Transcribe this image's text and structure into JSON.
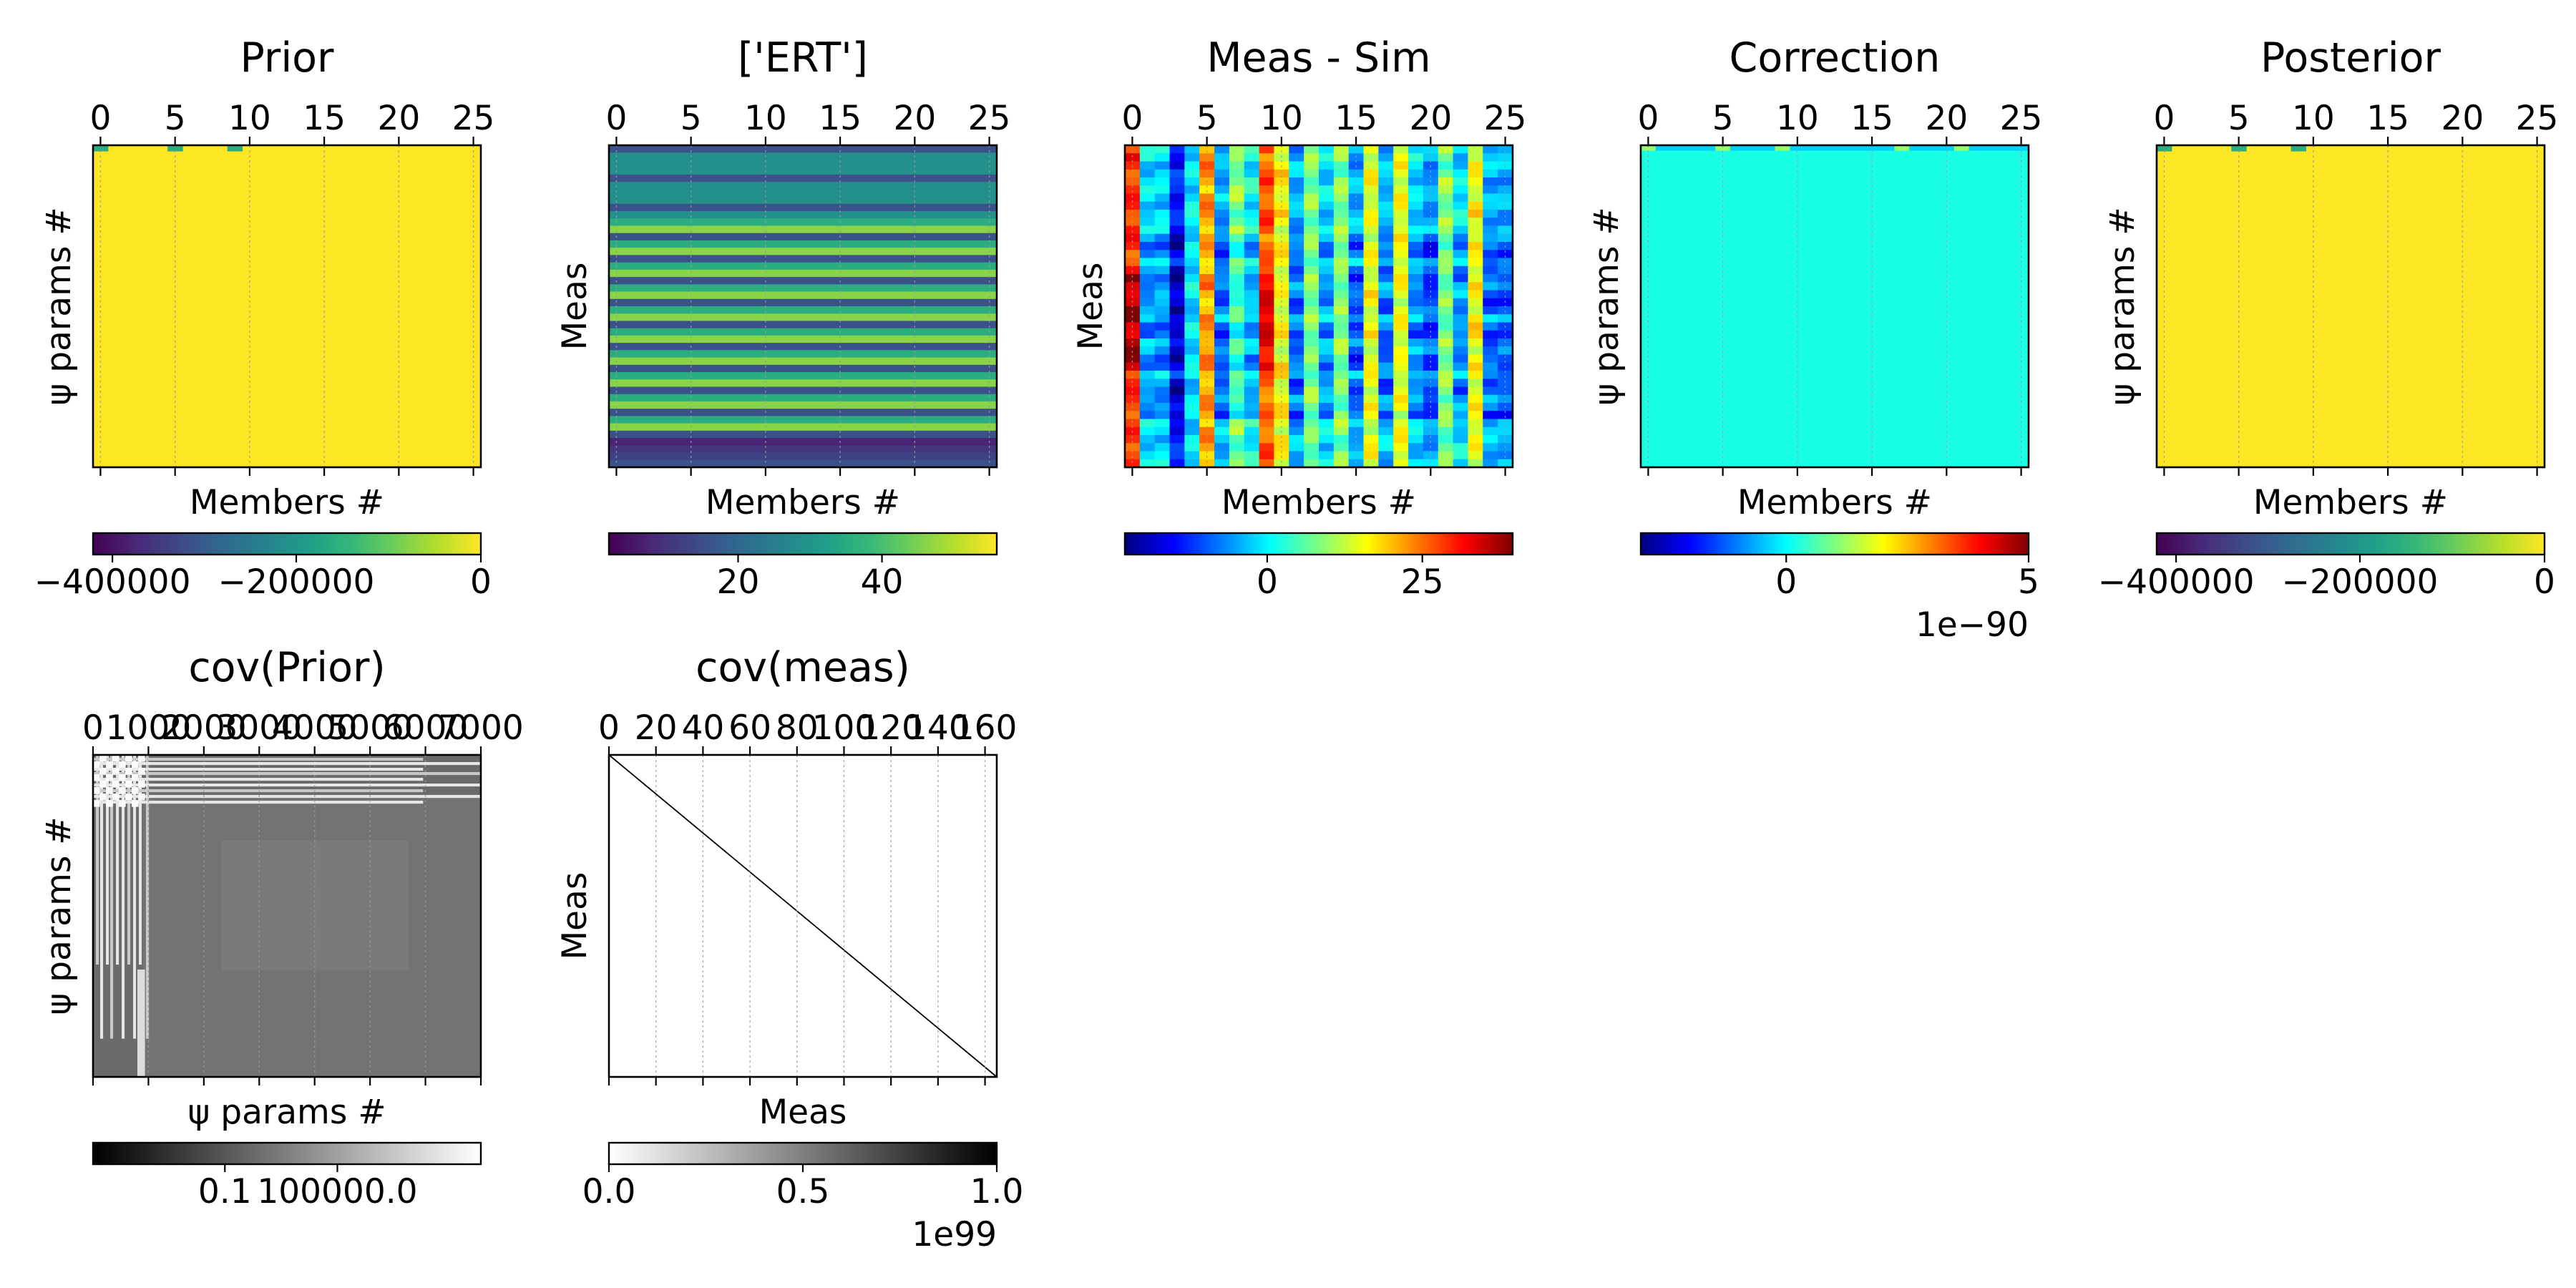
{
  "figure": {
    "panels": [
      {
        "id": "prior",
        "title": "Prior",
        "xlabel": "Members #",
        "ylabel": "ψ params #",
        "xticks": [
          "0",
          "5",
          "10",
          "15",
          "20",
          "25"
        ],
        "colormap": "viridis",
        "colorbar_ticks": [
          "−400000",
          "−200000",
          "0"
        ],
        "colorbar_offset": ""
      },
      {
        "id": "ert",
        "title": "['ERT']",
        "xlabel": "Members #",
        "ylabel": "Meas",
        "xticks": [
          "0",
          "5",
          "10",
          "15",
          "20",
          "25"
        ],
        "colormap": "viridis",
        "colorbar_ticks": [
          "20",
          "40"
        ],
        "colorbar_offset": ""
      },
      {
        "id": "meas_sim",
        "title": "Meas - Sim",
        "xlabel": "Members #",
        "ylabel": "Meas",
        "xticks": [
          "0",
          "5",
          "10",
          "15",
          "20",
          "25"
        ],
        "colormap": "jet",
        "colorbar_ticks": [
          "0",
          "25"
        ],
        "colorbar_offset": ""
      },
      {
        "id": "correction",
        "title": "Correction",
        "xlabel": "Members #",
        "ylabel": "ψ params #",
        "xticks": [
          "0",
          "5",
          "10",
          "15",
          "20",
          "25"
        ],
        "colormap": "jet",
        "colorbar_ticks": [
          "0",
          "5"
        ],
        "colorbar_offset": "1e−90"
      },
      {
        "id": "posterior",
        "title": "Posterior",
        "xlabel": "Members #",
        "ylabel": "ψ params #",
        "xticks": [
          "0",
          "5",
          "10",
          "15",
          "20",
          "25"
        ],
        "colormap": "viridis",
        "colorbar_ticks": [
          "−400000",
          "−200000",
          "0"
        ],
        "colorbar_offset": ""
      },
      {
        "id": "cov_prior",
        "title": "cov(Prior)",
        "xlabel": "ψ params #",
        "ylabel": "ψ params #",
        "xticks": [
          "0",
          "1000",
          "2000",
          "3000",
          "4000",
          "5000",
          "6000",
          "7000"
        ],
        "colormap": "gray",
        "colorbar_ticks": [
          "0.1",
          "100000.0"
        ],
        "colorbar_offset": ""
      },
      {
        "id": "cov_meas",
        "title": "cov(meas)",
        "xlabel": "Meas",
        "ylabel": "Meas",
        "xticks": [
          "0",
          "20",
          "40",
          "60",
          "80",
          "100",
          "120",
          "140",
          "160"
        ],
        "colormap": "gray_r",
        "colorbar_ticks": [
          "0.0",
          "0.5",
          "1.0"
        ],
        "colorbar_offset": "1e99"
      }
    ]
  },
  "chart_data": [
    {
      "type": "heatmap",
      "title": "Prior",
      "xlabel": "Members #",
      "ylabel": "ψ params #",
      "xlim": [
        0,
        25
      ],
      "colorbar": [
        -420000,
        0
      ],
      "members": 26,
      "note_values": "nearly uniform at 0 with a few low-valued cells in the first row at members 0, 5 and 9"
    },
    {
      "type": "heatmap",
      "title": "['ERT']",
      "xlabel": "Members #",
      "ylabel": "Meas",
      "xlim": [
        0,
        25
      ],
      "colorbar": [
        2,
        56
      ],
      "members": 26
    },
    {
      "type": "heatmap",
      "title": "Meas - Sim",
      "xlabel": "Members #",
      "ylabel": "Meas",
      "xlim": [
        0,
        25
      ],
      "colorbar": [
        -20,
        40
      ],
      "members": 26
    },
    {
      "type": "heatmap",
      "title": "Correction",
      "xlabel": "Members #",
      "ylabel": "ψ params #",
      "xlim": [
        0,
        25
      ],
      "colorbar": [
        -2e-90,
        6e-90
      ],
      "colorbar_offset": "1e−90",
      "members": 26
    },
    {
      "type": "heatmap",
      "title": "Posterior",
      "xlabel": "Members #",
      "ylabel": "ψ params #",
      "xlim": [
        0,
        25
      ],
      "colorbar": [
        -420000,
        0
      ],
      "members": 26
    },
    {
      "type": "heatmap",
      "title": "cov(Prior)",
      "xlabel": "ψ params #",
      "ylabel": "ψ params #",
      "xlim": [
        0,
        7000
      ],
      "colorbar_scale": "log"
    },
    {
      "type": "heatmap",
      "title": "cov(meas)",
      "xlabel": "Meas",
      "ylabel": "Meas",
      "xlim": [
        0,
        165
      ],
      "colorbar": [
        0.0,
        1.0
      ],
      "colorbar_offset": "1e99",
      "note_values": "diagonal matrix: non-zero only on the main diagonal"
    }
  ]
}
